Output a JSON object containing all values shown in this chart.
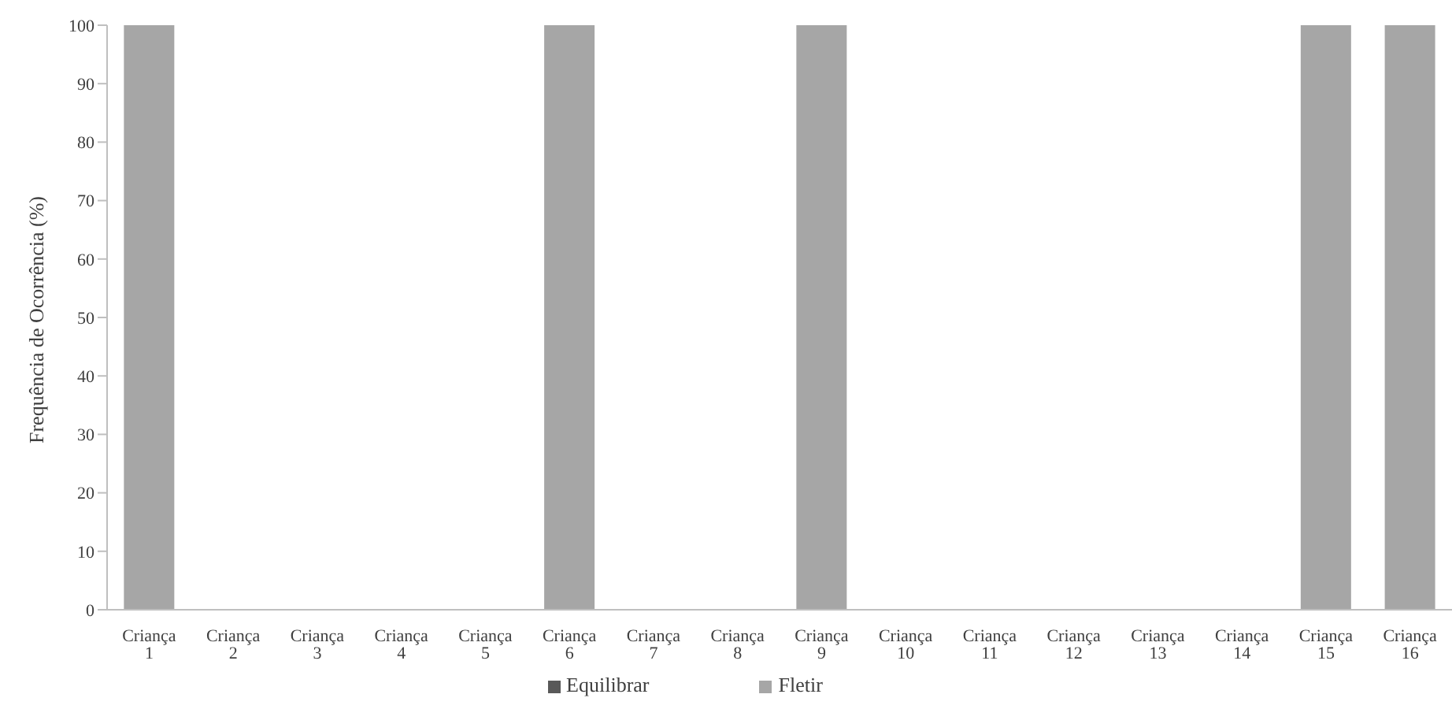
{
  "chart_data": {
    "type": "bar",
    "stacked": true,
    "ylabel": "Frequência de Ocorrência (%)",
    "categories": [
      "Criança 1",
      "Criança 2",
      "Criança 3",
      "Criança 4",
      "Criança 5",
      "Criança 6",
      "Criança 7",
      "Criança 8",
      "Criança 9",
      "Criança 10",
      "Criança 11",
      "Criança 12",
      "Criança 13",
      "Criança 14",
      "Criança 15",
      "Criança 16"
    ],
    "series": [
      {
        "name": "Equilibrar",
        "color": "#595959",
        "values": [
          0,
          0,
          0,
          0,
          0,
          0,
          0,
          0,
          0,
          0,
          0,
          0,
          0,
          0,
          0,
          0
        ]
      },
      {
        "name": "Fletir",
        "color": "#a6a6a6",
        "values": [
          100,
          0,
          0,
          0,
          0,
          100,
          0,
          0,
          100,
          0,
          0,
          0,
          0,
          0,
          100,
          100
        ]
      }
    ],
    "ylim": [
      0,
      100
    ],
    "yticks": [
      0,
      10,
      20,
      30,
      40,
      50,
      60,
      70,
      80,
      90,
      100
    ],
    "grid": false,
    "legend": "bottom"
  }
}
